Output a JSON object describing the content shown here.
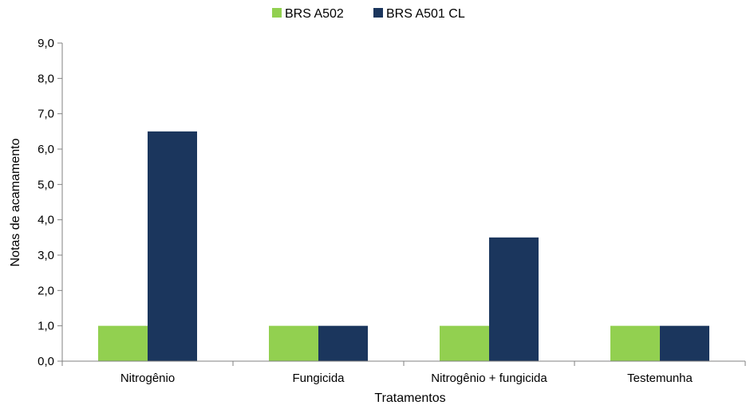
{
  "chart_data": {
    "type": "bar",
    "categories": [
      "Nitrogênio",
      "Fungicida",
      "Nitrogênio + fungicida",
      "Testemunha"
    ],
    "series": [
      {
        "name": "BRS A502",
        "values": [
          1.0,
          1.0,
          1.0,
          1.0
        ],
        "color": "#92d050"
      },
      {
        "name": "BRS A501 CL",
        "values": [
          6.5,
          1.0,
          3.5,
          1.0
        ],
        "color": "#1b365d"
      }
    ],
    "xlabel": "Tratamentos",
    "ylabel": "Notas de acamamento",
    "ylim": [
      0,
      9
    ],
    "yticks": [
      "0,0",
      "1,0",
      "2,0",
      "3,0",
      "4,0",
      "5,0",
      "6,0",
      "7,0",
      "8,0",
      "9,0"
    ],
    "grid": false,
    "legend_position": "top-center"
  }
}
